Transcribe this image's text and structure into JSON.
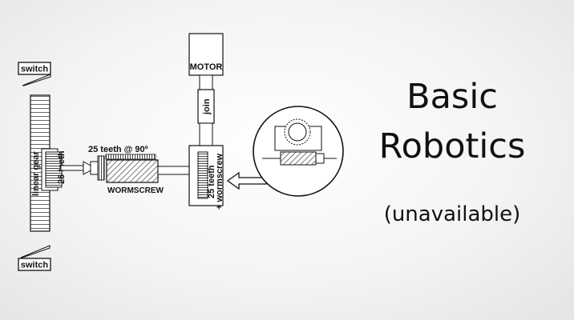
{
  "diagram": {
    "switch_top": "switch",
    "switch_bottom": "switch",
    "motor": "MOTOR",
    "join": "join",
    "linear_gear": "linear gear",
    "left_gear_teeth": "25 teeth",
    "bevel_gear": "25 teeth @ 90º",
    "wormscrew": "WORMSCREW",
    "worm_gear_line1": "25 teeth",
    "worm_gear_line2": "+ wormscrew"
  },
  "title": {
    "line1": "Basic",
    "line2": "Robotics",
    "subtitle": "(unavailable)"
  },
  "colors": {
    "ink": "#111111",
    "fill": "#ffffff",
    "hatch": "#777777"
  }
}
